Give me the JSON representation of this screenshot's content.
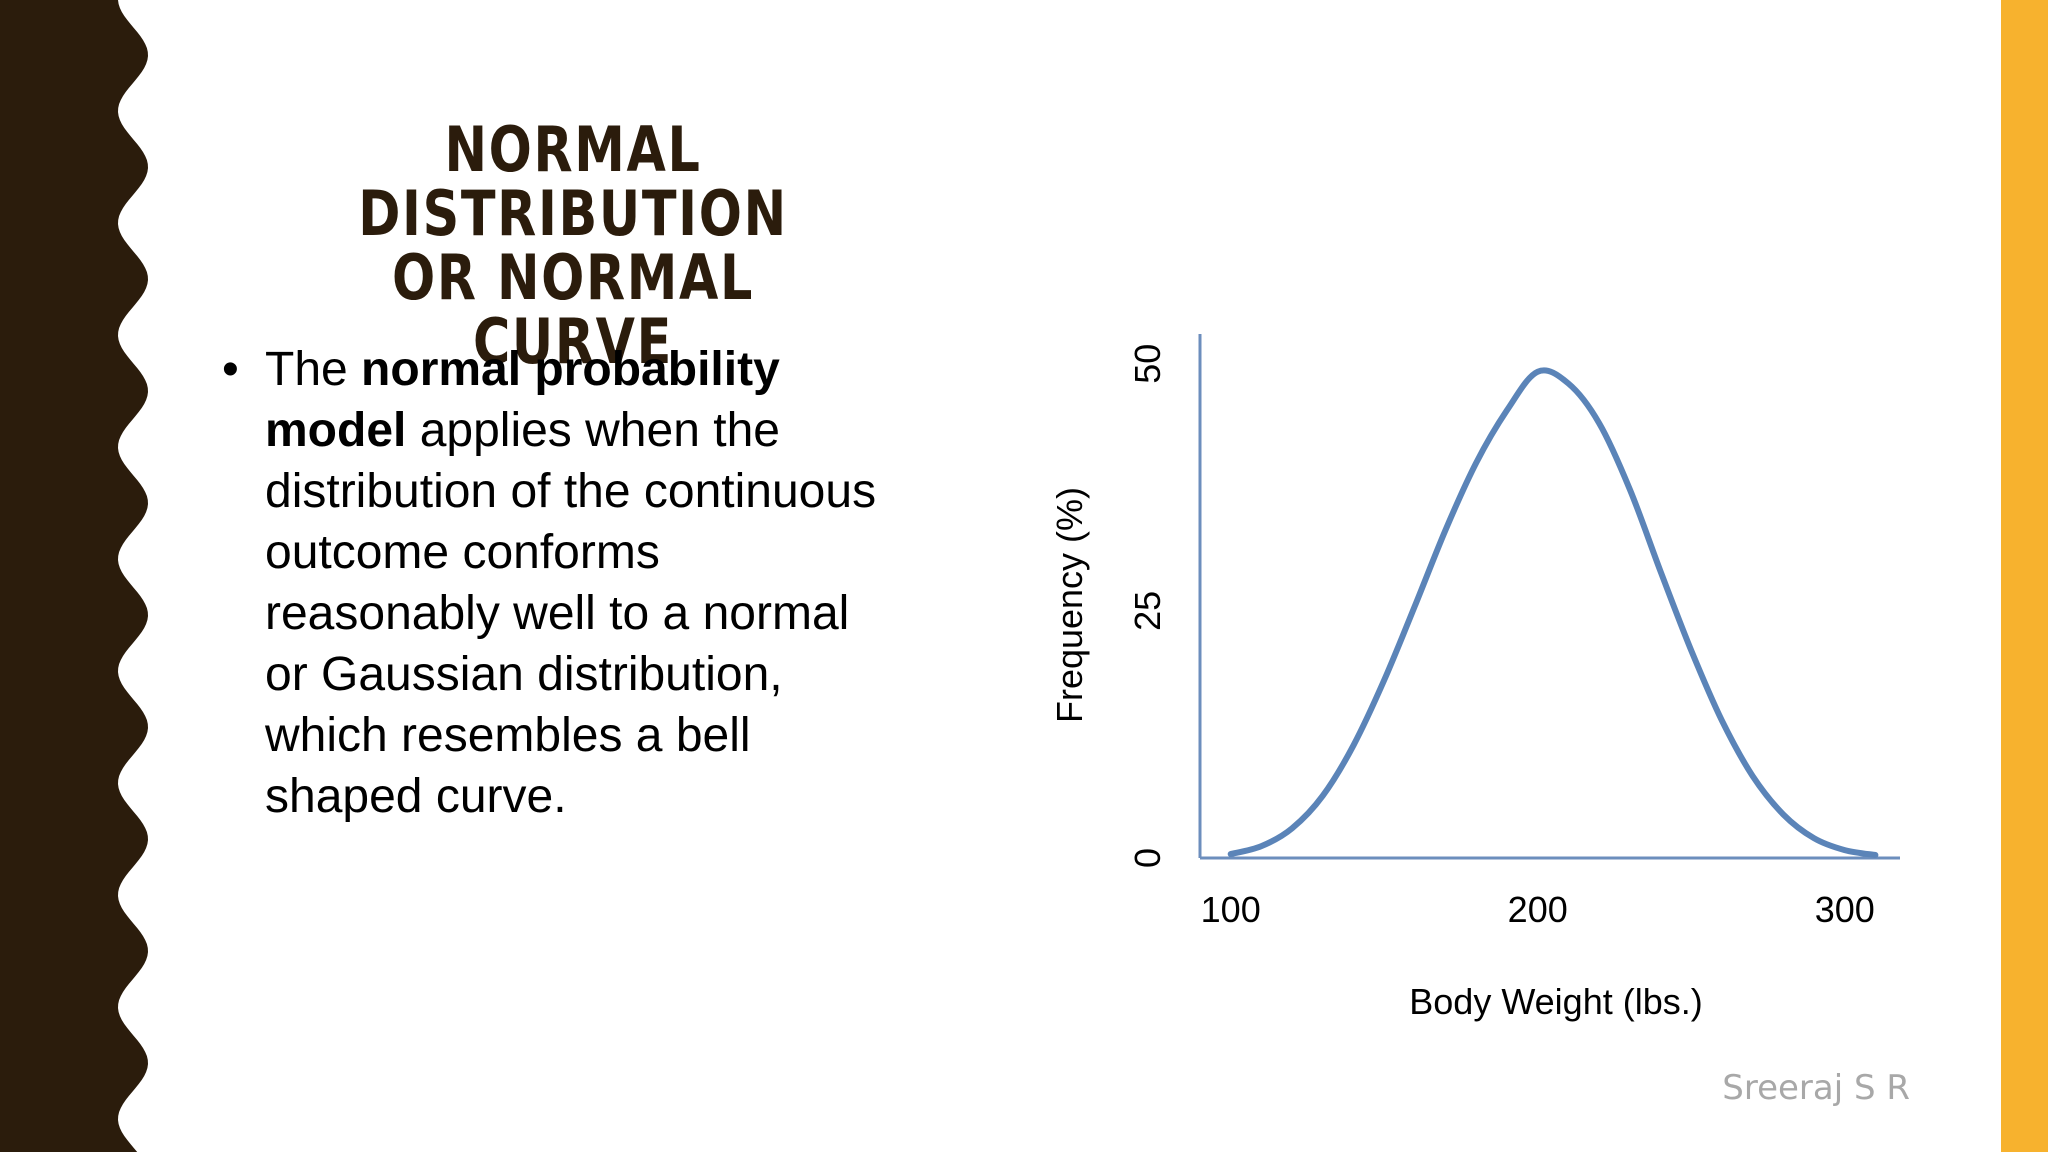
{
  "colors": {
    "left_band": "#2b1c0c",
    "right_band": "#f7b22e",
    "title": "#2b1c0c",
    "curve": "#5b84b8",
    "axis": "#6c8ebd",
    "watermark": "#a8a8a8"
  },
  "slide": {
    "title_line1": "NORMAL DISTRIBUTION",
    "title_line2": "OR NORMAL CURVE",
    "bullet_symbol": "•",
    "bullet": {
      "l1_pre": "The ",
      "l1_bold": "normal probability",
      "l2_bold": "model",
      "l2_post": " applies when the",
      "l3": "distribution of the continuous",
      "l4": "outcome conforms",
      "l5": "reasonably well to a normal",
      "l6": "or Gaussian distribution,",
      "l7": "which resembles a bell",
      "l8": "shaped curve."
    },
    "watermark": "Sreeraj S R"
  },
  "chart_data": {
    "type": "line",
    "title": "",
    "xlabel": "Body Weight (lbs.)",
    "ylabel": "Frequency (%)",
    "xlim": [
      90,
      318
    ],
    "ylim": [
      0,
      52
    ],
    "x_ticks": [
      100,
      200,
      300
    ],
    "y_ticks": [
      0,
      25,
      50
    ],
    "grid": false,
    "legend": "none",
    "series": [
      {
        "x": [
          100,
          110,
          120,
          130,
          140,
          150,
          160,
          170,
          180,
          190,
          200,
          210,
          220,
          230,
          240,
          250,
          260,
          270,
          280,
          290,
          300,
          310
        ],
        "values": [
          0.4,
          1.2,
          3.0,
          6.3,
          11.4,
          18.0,
          25.5,
          33.2,
          40.0,
          45.3,
          49.2,
          48.0,
          44.0,
          37.3,
          29.0,
          21.0,
          13.9,
          8.3,
          4.4,
          2.0,
          0.8,
          0.3
        ]
      }
    ]
  }
}
